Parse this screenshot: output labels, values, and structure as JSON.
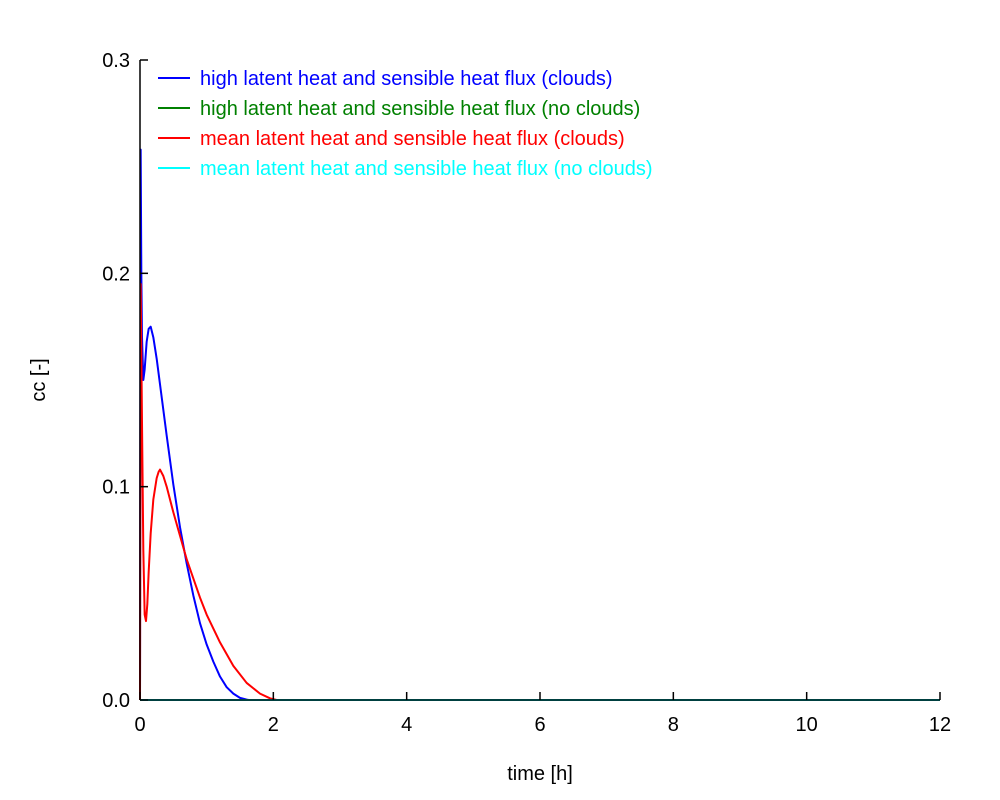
{
  "chart_data": {
    "type": "line",
    "title": "",
    "xlabel": "time [h]",
    "ylabel": "cc [-]",
    "xlim": [
      0,
      12
    ],
    "ylim": [
      0,
      0.3
    ],
    "xticks": [
      0,
      2,
      4,
      6,
      8,
      10,
      12
    ],
    "xtick_labels": [
      "0",
      "2",
      "4",
      "6",
      "8",
      "10",
      "12"
    ],
    "yticks": [
      0.0,
      0.1,
      0.2,
      0.3
    ],
    "ytick_labels": [
      "0.0",
      "0.1",
      "0.2",
      "0.3"
    ],
    "grid": false,
    "legend_position": "top-left",
    "series": [
      {
        "name": "high latent heat and sensible heat flux (clouds)",
        "color": "#0000ff",
        "x": [
          0.0,
          0.01,
          0.02,
          0.03,
          0.05,
          0.07,
          0.1,
          0.13,
          0.16,
          0.2,
          0.25,
          0.3,
          0.4,
          0.5,
          0.6,
          0.7,
          0.8,
          0.9,
          1.0,
          1.1,
          1.2,
          1.3,
          1.4,
          1.5,
          1.6,
          1.63,
          2.0,
          4.0,
          12.0
        ],
        "y": [
          0.0,
          0.258,
          0.2,
          0.17,
          0.15,
          0.155,
          0.168,
          0.174,
          0.175,
          0.17,
          0.16,
          0.148,
          0.124,
          0.101,
          0.081,
          0.064,
          0.049,
          0.036,
          0.026,
          0.018,
          0.011,
          0.006,
          0.003,
          0.001,
          0.0002,
          0.0,
          0.0,
          0.0,
          0.0
        ]
      },
      {
        "name": "high latent heat and sensible heat flux (no clouds)",
        "color": "#008000",
        "x": [
          0.0,
          12.0
        ],
        "y": [
          0.0,
          0.0
        ]
      },
      {
        "name": "mean latent heat and sensible heat flux (clouds)",
        "color": "#ff0000",
        "x": [
          0.0,
          0.01,
          0.03,
          0.05,
          0.07,
          0.09,
          0.11,
          0.13,
          0.16,
          0.2,
          0.25,
          0.28,
          0.3,
          0.35,
          0.4,
          0.5,
          0.6,
          0.7,
          0.8,
          0.9,
          1.0,
          1.2,
          1.4,
          1.6,
          1.8,
          1.95,
          2.05,
          4.0,
          12.0
        ],
        "y": [
          0.0,
          0.195,
          0.13,
          0.07,
          0.04,
          0.037,
          0.045,
          0.06,
          0.078,
          0.094,
          0.104,
          0.107,
          0.108,
          0.105,
          0.1,
          0.088,
          0.077,
          0.066,
          0.057,
          0.048,
          0.04,
          0.027,
          0.016,
          0.008,
          0.003,
          0.0008,
          0.0,
          0.0,
          0.0
        ]
      },
      {
        "name": "mean latent heat and sensible heat flux (no clouds)",
        "color": "#00ffff",
        "x": [
          0.0,
          12.0
        ],
        "y": [
          0.0,
          0.0
        ]
      }
    ]
  }
}
